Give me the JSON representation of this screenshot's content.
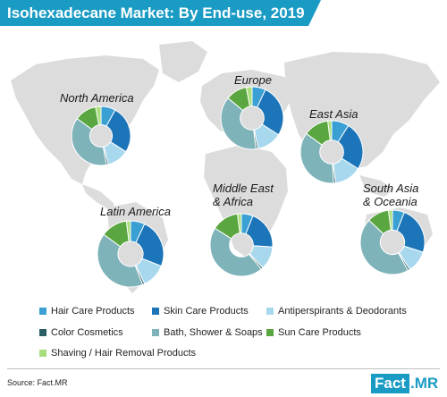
{
  "title": "Isohexadecane Market: By End-use, 2019",
  "source": "Source: Fact.MR",
  "logo": {
    "part1": "Fact",
    "part2": ".MR"
  },
  "colors": {
    "title_bg": "#1a9bc4",
    "map": "#dcdcdc"
  },
  "chart_data": {
    "type": "pie",
    "donut": true,
    "categories": [
      "Hair Care Products",
      "Skin Care Products",
      "Antiperspirants & Deodorants",
      "Color Cosmetics",
      "Bath, Shower & Soaps",
      "Sun Care Products",
      "Shaving / Hair Removal Products"
    ],
    "colors": [
      "#3aa0d4",
      "#1b75b8",
      "#a7d8ee",
      "#2a5f63",
      "#7fb3ba",
      "#5aa640",
      "#a9de7c"
    ],
    "legend_placement": "bottom",
    "series": [
      {
        "name": "North America",
        "label_lines": [
          "North America"
        ],
        "values": [
          8,
          26,
          12,
          1,
          38,
          12,
          3
        ]
      },
      {
        "name": "Europe",
        "label_lines": [
          "Europe"
        ],
        "values": [
          7,
          27,
          13,
          1,
          38,
          11,
          3
        ]
      },
      {
        "name": "East Asia",
        "label_lines": [
          "East Asia"
        ],
        "values": [
          9,
          25,
          14,
          1,
          36,
          13,
          2
        ]
      },
      {
        "name": "Middle East & Africa",
        "label_lines": [
          "Middle East",
          "& Africa"
        ],
        "values": [
          6,
          20,
          12,
          1,
          45,
          14,
          2
        ]
      },
      {
        "name": "Latin America",
        "label_lines": [
          "Latin America"
        ],
        "values": [
          7,
          24,
          12,
          1,
          41,
          13,
          2
        ]
      },
      {
        "name": "South Asia & Oceania",
        "label_lines": [
          "South Asia",
          "& Oceania"
        ],
        "values": [
          6,
          24,
          11,
          1,
          45,
          11,
          2
        ]
      }
    ]
  }
}
